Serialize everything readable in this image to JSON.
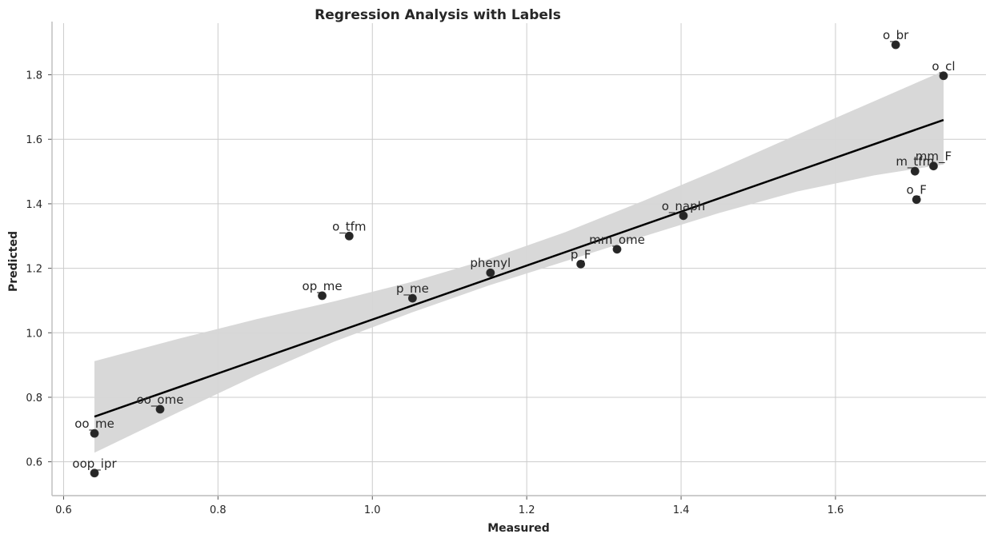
{
  "chart_data": {
    "type": "scatter",
    "title": "Regression Analysis with Labels",
    "xlabel": "Measured",
    "ylabel": "Predicted",
    "xlim": [
      0.585,
      1.795
    ],
    "ylim": [
      0.495,
      1.96
    ],
    "xticks": [
      0.6,
      0.8,
      1.0,
      1.2,
      1.4,
      1.6
    ],
    "yticks": [
      0.6,
      0.8,
      1.0,
      1.2,
      1.4,
      1.6,
      1.8
    ],
    "xtick_labels": [
      "0.6",
      "0.8",
      "1.0",
      "1.2",
      "1.4",
      "1.6"
    ],
    "ytick_labels": [
      "0.6",
      "0.8",
      "1.0",
      "1.2",
      "1.4",
      "1.6",
      "1.8"
    ],
    "grid": true,
    "points": [
      {
        "label": "oop_ipr",
        "x": 0.64,
        "y": 0.565
      },
      {
        "label": "oo_me",
        "x": 0.64,
        "y": 0.688
      },
      {
        "label": "oo_ome",
        "x": 0.725,
        "y": 0.763
      },
      {
        "label": "op_me",
        "x": 0.935,
        "y": 1.115
      },
      {
        "label": "o_tfm",
        "x": 0.97,
        "y": 1.3
      },
      {
        "label": "p_me",
        "x": 1.052,
        "y": 1.107
      },
      {
        "label": "phenyl",
        "x": 1.153,
        "y": 1.186
      },
      {
        "label": "p_F",
        "x": 1.27,
        "y": 1.213
      },
      {
        "label": "mm_ome",
        "x": 1.317,
        "y": 1.259
      },
      {
        "label": "o_naph",
        "x": 1.403,
        "y": 1.363
      },
      {
        "label": "o_br",
        "x": 1.678,
        "y": 1.893
      },
      {
        "label": "m_tfm",
        "x": 1.703,
        "y": 1.501
      },
      {
        "label": "o_F",
        "x": 1.705,
        "y": 1.413
      },
      {
        "label": "mm_F",
        "x": 1.727,
        "y": 1.517
      },
      {
        "label": "o_cl",
        "x": 1.74,
        "y": 1.797
      }
    ],
    "regression": {
      "x": [
        0.64,
        1.74
      ],
      "y": [
        0.74,
        1.66
      ]
    },
    "ci_band": {
      "x": [
        0.64,
        0.75,
        0.85,
        0.95,
        1.05,
        1.15,
        1.25,
        1.35,
        1.45,
        1.55,
        1.65,
        1.74
      ],
      "lower": [
        0.628,
        0.755,
        0.868,
        0.972,
        1.062,
        1.146,
        1.222,
        1.298,
        1.372,
        1.438,
        1.488,
        1.522
      ],
      "upper": [
        0.912,
        0.982,
        1.042,
        1.097,
        1.157,
        1.228,
        1.312,
        1.408,
        1.508,
        1.614,
        1.718,
        1.812
      ]
    }
  }
}
